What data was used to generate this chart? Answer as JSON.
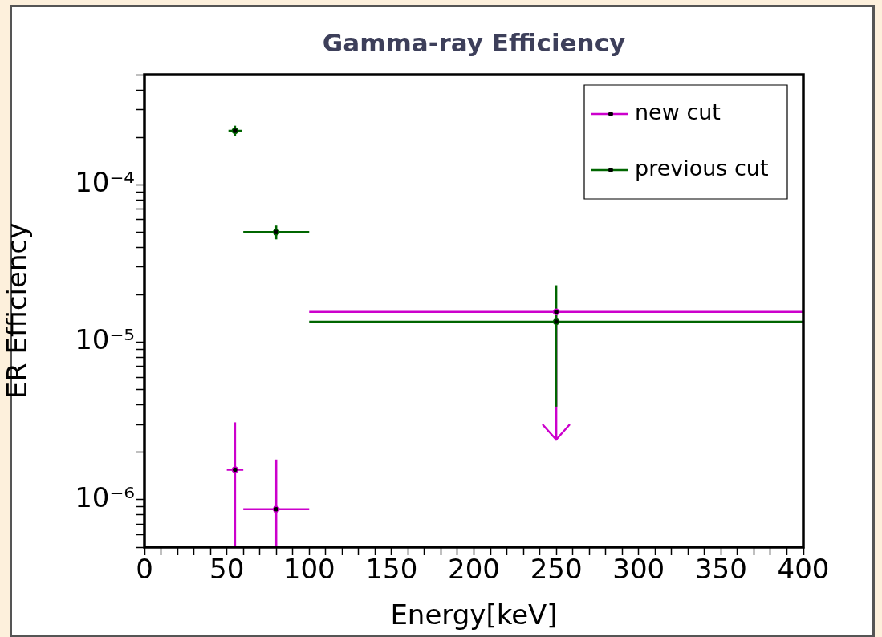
{
  "chart_data": {
    "type": "scatter",
    "title": "Gamma-ray Efficiency",
    "xlabel": "Energy[keV]",
    "ylabel": "ER Efficiency",
    "x": [
      55,
      80,
      250
    ],
    "series": [
      {
        "name": "new cut",
        "color": "#cc00cc",
        "values": [
          1.55e-06,
          8.7e-07,
          1.56e-05
        ],
        "errors": [
          [
            5e-07,
            3.1e-06
          ],
          [
            5e-07,
            1.8e-06
          ],
          [
            2.4e-06,
            1.56e-05
          ]
        ],
        "xerrors": [
          5,
          20,
          150
        ]
      },
      {
        "name": "previous cut",
        "color": "#006600",
        "values": [
          0.00022,
          5e-05,
          1.35e-05
        ],
        "errors": [
          1.7e-05,
          5e-06,
          [
            3.9e-06,
            2.3e-05
          ]
        ],
        "xerrors": [
          4,
          20,
          150
        ]
      }
    ],
    "xlim": [
      0,
      400
    ],
    "xticks": [
      0,
      {
        "value": 10,
        "label": null
      },
      {
        "value": 20,
        "label": null
      },
      {
        "value": 30,
        "label": null
      },
      {
        "value": 40,
        "label": null
      },
      50,
      {
        "value": 60,
        "label": null
      },
      {
        "value": 70,
        "label": null
      },
      {
        "value": 80,
        "label": null
      },
      {
        "value": 90,
        "label": null
      },
      100,
      {
        "value": 110,
        "label": null
      },
      {
        "value": 120,
        "label": null
      },
      {
        "value": 130,
        "label": null
      },
      {
        "value": 140,
        "label": null
      },
      150,
      {
        "value": 160,
        "label": null
      },
      {
        "value": 170,
        "label": null
      },
      {
        "value": 180,
        "label": null
      },
      {
        "value": 190,
        "label": null
      },
      200,
      {
        "value": 210,
        "label": null
      },
      {
        "value": 220,
        "label": null
      },
      {
        "value": 230,
        "label": null
      },
      {
        "value": 240,
        "label": null
      },
      250,
      {
        "value": 260,
        "label": null
      },
      {
        "value": 270,
        "label": null
      },
      {
        "value": 280,
        "label": null
      },
      {
        "value": 290,
        "label": null
      },
      300,
      {
        "value": 310,
        "label": null
      },
      {
        "value": 320,
        "label": null
      },
      {
        "value": 330,
        "label": null
      },
      {
        "value": 340,
        "label": null
      },
      350,
      {
        "value": 360,
        "label": null
      },
      {
        "value": 370,
        "label": null
      },
      {
        "value": 380,
        "label": null
      },
      {
        "value": 390,
        "label": null
      },
      400
    ],
    "ylim": [
      5e-07,
      0.0005
    ],
    "yticks": [
      {
        "value": 5e-07,
        "label": null
      },
      {
        "value": 6e-07,
        "label": null
      },
      {
        "value": 7e-07,
        "label": null
      },
      {
        "value": 8e-07,
        "label": null
      },
      {
        "value": 9e-07,
        "label": null
      },
      {
        "value": 1e-06,
        "label": "10⁻⁶"
      },
      {
        "value": 2e-06,
        "label": null
      },
      {
        "value": 3e-06,
        "label": null
      },
      {
        "value": 4e-06,
        "label": null
      },
      {
        "value": 5e-06,
        "label": null
      },
      {
        "value": 6e-06,
        "label": null
      },
      {
        "value": 7e-06,
        "label": null
      },
      {
        "value": 8e-06,
        "label": null
      },
      {
        "value": 9e-06,
        "label": null
      },
      {
        "value": 1e-05,
        "label": "10⁻⁵"
      },
      {
        "value": 2e-05,
        "label": null
      },
      {
        "value": 3e-05,
        "label": null
      },
      {
        "value": 4e-05,
        "label": null
      },
      {
        "value": 5e-05,
        "label": null
      },
      {
        "value": 6e-05,
        "label": null
      },
      {
        "value": 7e-05,
        "label": null
      },
      {
        "value": 8e-05,
        "label": null
      },
      {
        "value": 9e-05,
        "label": null
      },
      {
        "value": 0.0001,
        "label": "10⁻⁴"
      },
      {
        "value": 0.0002,
        "label": null
      },
      {
        "value": 0.0003,
        "label": null
      },
      {
        "value": 0.0004,
        "label": null
      },
      {
        "value": 0.0005,
        "label": null
      }
    ],
    "log": true,
    "legend": "top right",
    "marker": "circle"
  }
}
